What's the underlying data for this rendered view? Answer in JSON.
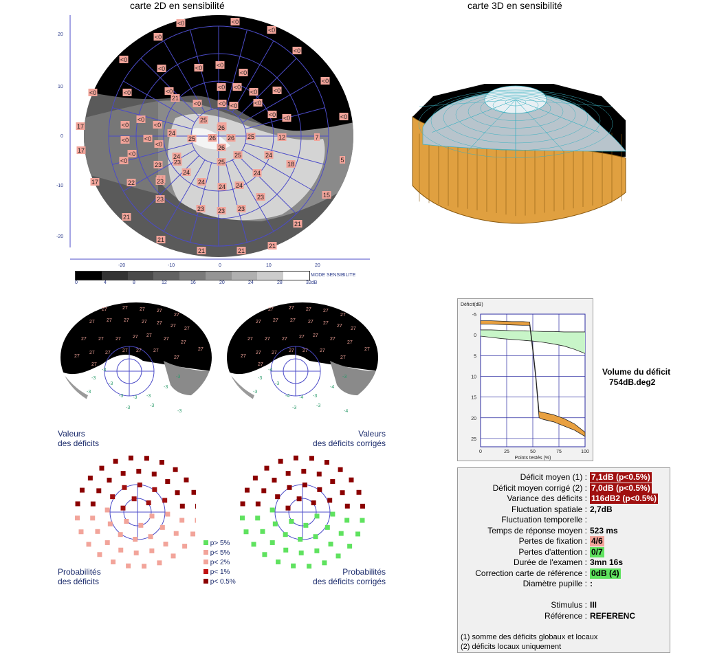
{
  "titles": {
    "map2d": "carte 2D en sensibilité",
    "map3d": "carte 3D en sensibilité"
  },
  "colors": {
    "pink": "#f2a49a",
    "red": "#a01010",
    "green": "#5fe25f",
    "navy": "#4b4bc8",
    "orange": "#e8a040"
  },
  "map2d": {
    "y_ticks": [
      "20",
      "10",
      "0",
      "-10",
      "-20"
    ],
    "x_ticks": [
      "-20",
      "-10",
      "0",
      "10",
      "20"
    ],
    "scale_label": "MODE SENSIBILITE",
    "scale_ticks": [
      "0",
      "4",
      "8",
      "12",
      "16",
      "20",
      "24",
      "28",
      "32dB"
    ],
    "point_values": [
      "<0",
      "<0",
      "<0",
      "<0",
      "<0",
      "<0",
      "<0",
      "<0",
      "<0",
      "<0",
      "<0",
      "<0",
      "<0",
      "<0",
      "<0",
      "<0",
      "<0",
      "<0",
      "<0",
      "<0",
      "<0",
      "<0",
      "<0",
      "<0",
      "<0",
      "<0",
      "<0",
      "<0",
      "<0",
      "<0",
      "<0",
      "<0",
      "<0",
      "17",
      "17",
      "17",
      "22",
      "21",
      "21",
      "21",
      "21",
      "21",
      "21",
      "21",
      "23",
      "23",
      "23",
      "23",
      "23",
      "23",
      "23",
      "23",
      "23",
      "24",
      "24",
      "24",
      "24",
      "24",
      "24",
      "24",
      "24",
      "25",
      "25",
      "25",
      "25",
      "25",
      "25",
      "26",
      "26",
      "26",
      "26",
      "12",
      "7",
      "5",
      "18",
      "15"
    ]
  },
  "deficit_maps": {
    "left_label": [
      "Valeurs",
      "des déficits"
    ],
    "right_label": [
      "Valeurs",
      "des déficits corrigés"
    ],
    "black_value": "27",
    "left_values": [
      "-3",
      "-3",
      "-3",
      "-3",
      "-3",
      "-3",
      "-3",
      "-3",
      "-3",
      "-3",
      "-3",
      "-3"
    ],
    "right_values": [
      "-4",
      "-3",
      "-3",
      "-3",
      "-4",
      "-4",
      "-3",
      "-4",
      "-3",
      "-3",
      "-3",
      "-4"
    ]
  },
  "probability_maps": {
    "left_label": [
      "Probabilités",
      "des déficits"
    ],
    "right_label": [
      "Probabilités",
      "des déficits corrigés"
    ],
    "legend": [
      {
        "label": "p> 5%",
        "color": "#5fe25f"
      },
      {
        "label": "p< 5%",
        "color": "#f2a49a"
      },
      {
        "label": "p< 2%",
        "color": "#f2a49a"
      },
      {
        "label": "p< 1%",
        "color": "#c01010"
      },
      {
        "label": "p< 0.5%",
        "color": "#8b0000"
      }
    ]
  },
  "deficit_volume": {
    "label": "Volume du déficit",
    "value": "754dB.deg2"
  },
  "chart_data": {
    "type": "line",
    "title": "",
    "ylabel": "Déficit(dB)",
    "xlabel": "Points testés (%)",
    "x_ticks": [
      0,
      25,
      50,
      75,
      100
    ],
    "y_ticks": [
      -5,
      0,
      5,
      10,
      15,
      20,
      25
    ],
    "xlim": [
      0,
      100
    ],
    "ylim": [
      -5,
      27
    ],
    "y_inverted": true,
    "grid": true,
    "series": [
      {
        "x": [
          0,
          10,
          20,
          30,
          40,
          47,
          50,
          53,
          56,
          60,
          70,
          80,
          90,
          100
        ],
        "values": [
          -3.4,
          -3.4,
          -3.3,
          -3.2,
          -3.2,
          -3.1,
          3,
          10,
          18.5,
          18.7,
          19.3,
          20.2,
          21.5,
          23.5
        ]
      },
      {
        "x": [
          0,
          10,
          20,
          30,
          40,
          47,
          50,
          53,
          56,
          60,
          70,
          80,
          90,
          100
        ],
        "values": [
          -2.6,
          -2.6,
          -2.5,
          -2.4,
          -2.3,
          -2.3,
          4,
          11,
          20,
          20.4,
          21,
          22,
          23,
          24.5
        ]
      },
      {
        "x": [
          0,
          10,
          20,
          30,
          40,
          50,
          60,
          70,
          80,
          90,
          100
        ],
        "values": [
          -1.2,
          -1.2,
          -1.1,
          -1.0,
          -1.0,
          -0.9,
          -0.8,
          -0.8,
          -0.7,
          -0.7,
          -0.7
        ]
      },
      {
        "x": [
          0,
          10,
          20,
          30,
          40,
          50,
          60,
          70,
          80,
          90,
          100
        ],
        "values": [
          0.3,
          0.6,
          0.9,
          1.1,
          1.3,
          1.5,
          1.8,
          2.2,
          2.7,
          3.5,
          4.5
        ]
      }
    ]
  },
  "stats": [
    {
      "label": "Déficit moyen (1) :",
      "value": "7,1dB (p<0.5%)",
      "style": "red"
    },
    {
      "label": "Déficit moyen corrigé (2) :",
      "value": "7,0dB (p<0.5%)",
      "style": "red"
    },
    {
      "label": "Variance des déficits :",
      "value": "116dB2 (p<0.5%)",
      "style": "red"
    },
    {
      "label": "Fluctuation spatiale :",
      "value": "2,7dB",
      "style": "plain"
    },
    {
      "label": "Fluctuation temporelle :",
      "value": "",
      "style": "plain"
    },
    {
      "label": "Temps de réponse moyen :",
      "value": "523 ms",
      "style": "plain"
    },
    {
      "label": "Pertes de fixation :",
      "value": "4/6",
      "style": "pink"
    },
    {
      "label": "Pertes d'attention :",
      "value": "0/7",
      "style": "green"
    },
    {
      "label": "Durée de l'examen :",
      "value": "3mn 16s",
      "style": "plain"
    },
    {
      "label": "Correction carte de référence :",
      "value": "0dB (4)",
      "style": "green"
    },
    {
      "label": "Diamètre pupille :",
      "value": ":",
      "style": "plain"
    },
    {
      "label": "",
      "value": "",
      "style": "plain"
    },
    {
      "label": "Stimulus :",
      "value": "III",
      "style": "plain"
    },
    {
      "label": "Référence :",
      "value": "REFERENC",
      "style": "plain"
    }
  ],
  "footnotes": [
    "(1) somme des déficits globaux et locaux",
    "(2) déficits locaux uniquement"
  ]
}
